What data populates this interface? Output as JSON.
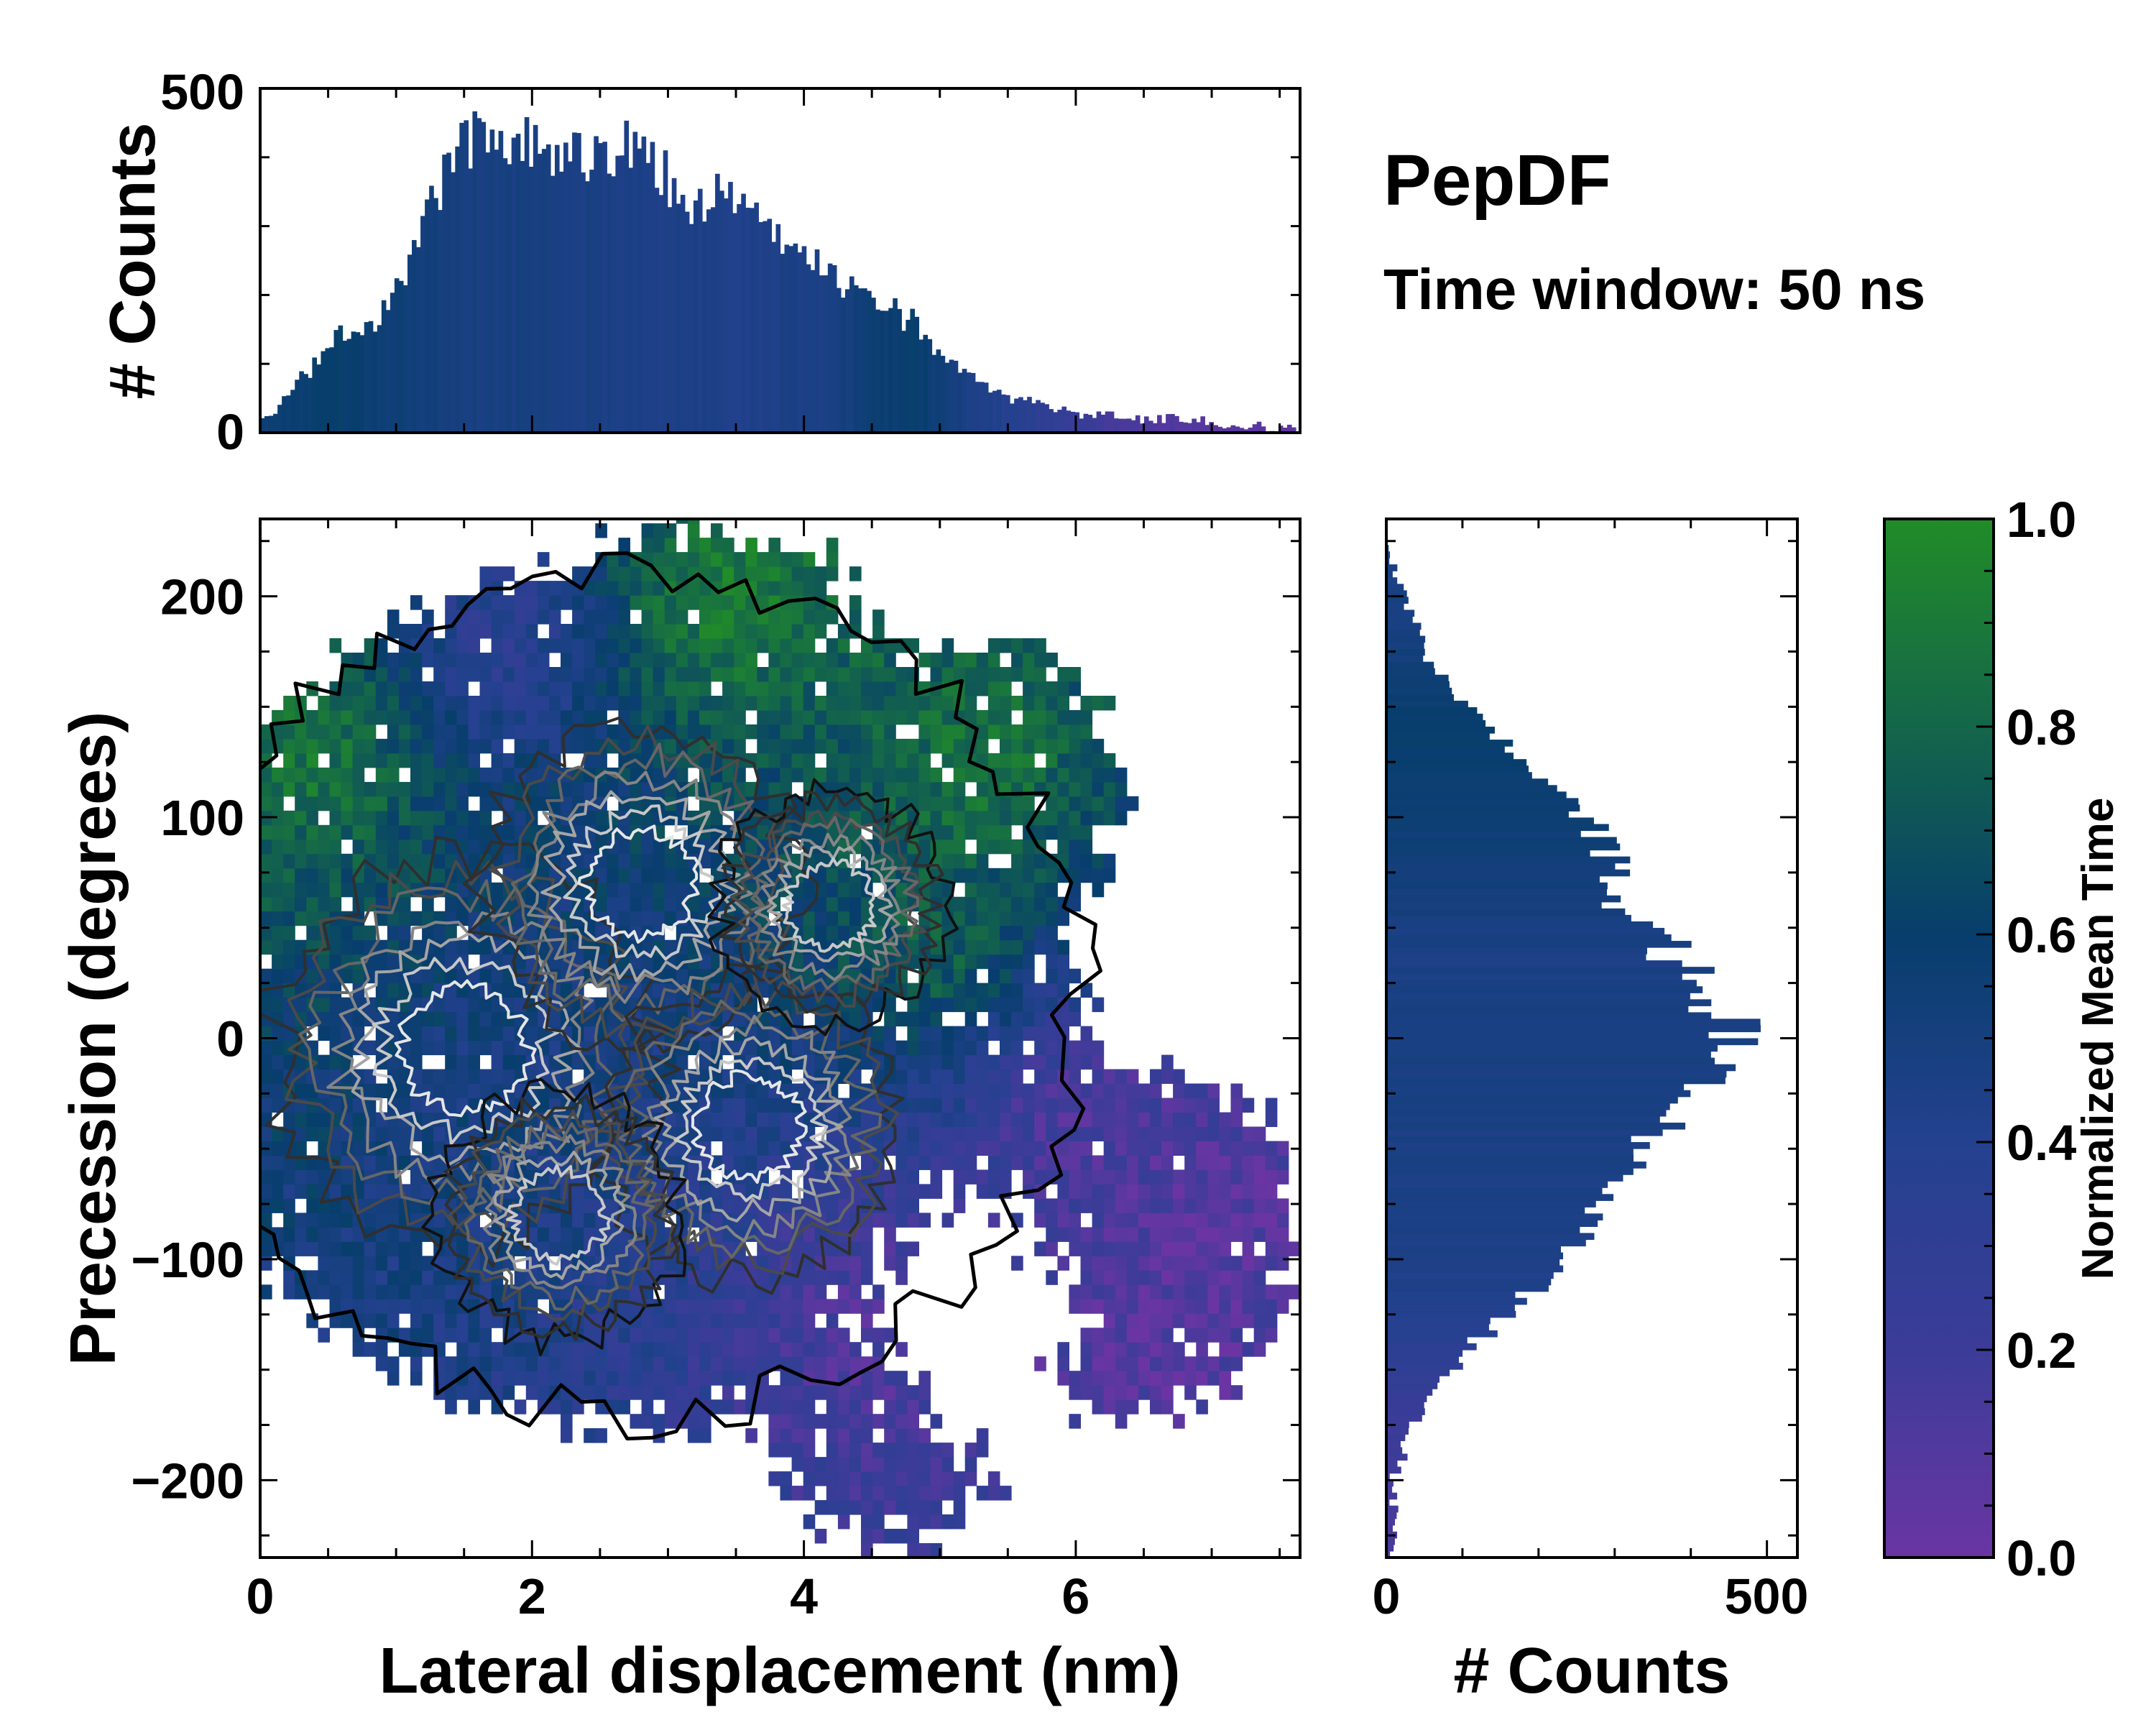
{
  "chart_data": [
    {
      "id": "top_histogram",
      "type": "bar",
      "title": "",
      "xlabel": "",
      "ylabel": "# Counts",
      "xlim": [
        0,
        7.65
      ],
      "ylim": [
        0,
        500
      ],
      "yticks": [
        "0",
        "500"
      ],
      "x_profile": [
        0.0,
        0.3,
        0.6,
        0.9,
        1.2,
        1.4,
        1.6,
        1.9,
        2.2,
        2.5,
        2.8,
        3.0,
        3.2,
        3.4,
        3.6,
        3.9,
        4.2,
        4.5,
        4.8,
        5.1,
        5.4,
        5.8,
        6.2,
        6.5,
        6.8,
        7.2,
        7.5
      ],
      "count_profile": [
        10,
        80,
        140,
        170,
        300,
        400,
        430,
        420,
        400,
        410,
        420,
        370,
        330,
        350,
        320,
        270,
        230,
        200,
        160,
        100,
        60,
        35,
        25,
        20,
        18,
        10,
        5
      ],
      "mean_time_profile": [
        0.55,
        0.58,
        0.6,
        0.55,
        0.52,
        0.5,
        0.48,
        0.48,
        0.47,
        0.46,
        0.45,
        0.45,
        0.45,
        0.44,
        0.44,
        0.45,
        0.48,
        0.55,
        0.6,
        0.5,
        0.42,
        0.3,
        0.18,
        0.12,
        0.1,
        0.08,
        0.06
      ]
    },
    {
      "id": "main_heatmap",
      "type": "heatmap",
      "xlabel": "Lateral displacement (nm)",
      "ylabel": "Precession (degrees)",
      "xlim": [
        0,
        7.65
      ],
      "ylim": [
        -235,
        235
      ],
      "xticks": [
        "0",
        "2",
        "4",
        "6"
      ],
      "yticks": [
        "−200",
        "−100",
        "0",
        "100",
        "200"
      ],
      "density_clusters": [
        {
          "x": 1.5,
          "y": -5,
          "weight": 1.0
        },
        {
          "x": 2.8,
          "y": 70,
          "weight": 0.8
        },
        {
          "x": 3.6,
          "y": -40,
          "weight": 0.75
        },
        {
          "x": 2.2,
          "y": -80,
          "weight": 0.6
        },
        {
          "x": 4.2,
          "y": 60,
          "weight": 0.55
        }
      ],
      "time_regions": [
        {
          "x": 0.4,
          "y": 130,
          "mean_time": 0.9
        },
        {
          "x": 3.4,
          "y": 200,
          "mean_time": 0.95
        },
        {
          "x": 5.3,
          "y": 120,
          "mean_time": 0.9
        },
        {
          "x": 5.0,
          "y": 40,
          "mean_time": 0.8
        },
        {
          "x": 2.0,
          "y": 0,
          "mean_time": 0.5
        },
        {
          "x": 1.8,
          "y": 180,
          "mean_time": 0.3
        },
        {
          "x": 4.5,
          "y": -130,
          "mean_time": 0.1
        },
        {
          "x": 6.0,
          "y": -30,
          "mean_time": 0.08
        },
        {
          "x": 7.0,
          "y": -80,
          "mean_time": 0.05
        },
        {
          "x": 6.5,
          "y": -140,
          "mean_time": 0.05
        }
      ],
      "empty_hole": {
        "x_range": [
          4.4,
          6.1
        ],
        "y_range": [
          -190,
          -60
        ]
      }
    },
    {
      "id": "right_histogram",
      "type": "bar",
      "orientation": "horizontal",
      "xlabel": "# Counts",
      "ylabel": "",
      "xlim": [
        0,
        540
      ],
      "ylim": [
        -235,
        235
      ],
      "xticks": [
        "0",
        "500"
      ],
      "y_profile": [
        -200,
        -180,
        -160,
        -140,
        -120,
        -100,
        -80,
        -60,
        -40,
        -20,
        0,
        20,
        40,
        60,
        80,
        100,
        120,
        140,
        160,
        180,
        200,
        220
      ],
      "count_profile": [
        10,
        30,
        60,
        110,
        170,
        230,
        270,
        300,
        360,
        420,
        470,
        430,
        370,
        320,
        300,
        260,
        190,
        130,
        80,
        45,
        25,
        5
      ],
      "mean_time_profile": [
        0.15,
        0.2,
        0.25,
        0.35,
        0.42,
        0.45,
        0.45,
        0.46,
        0.47,
        0.48,
        0.48,
        0.47,
        0.46,
        0.5,
        0.52,
        0.55,
        0.58,
        0.6,
        0.55,
        0.5,
        0.48,
        0.45
      ]
    },
    {
      "id": "colorbar",
      "type": "colorbar",
      "label": "Normalized Mean Time",
      "range": [
        0.0,
        1.0
      ],
      "ticks": [
        "0.0",
        "0.2",
        "0.4",
        "0.6",
        "0.8",
        "1.0"
      ],
      "colors": [
        "#6a35a3",
        "#3b3c98",
        "#24418f",
        "#073e6c",
        "#14664a",
        "#218c28"
      ]
    }
  ],
  "figure_title": "PepDF",
  "figure_subtitle": "Time window: 50 ns"
}
